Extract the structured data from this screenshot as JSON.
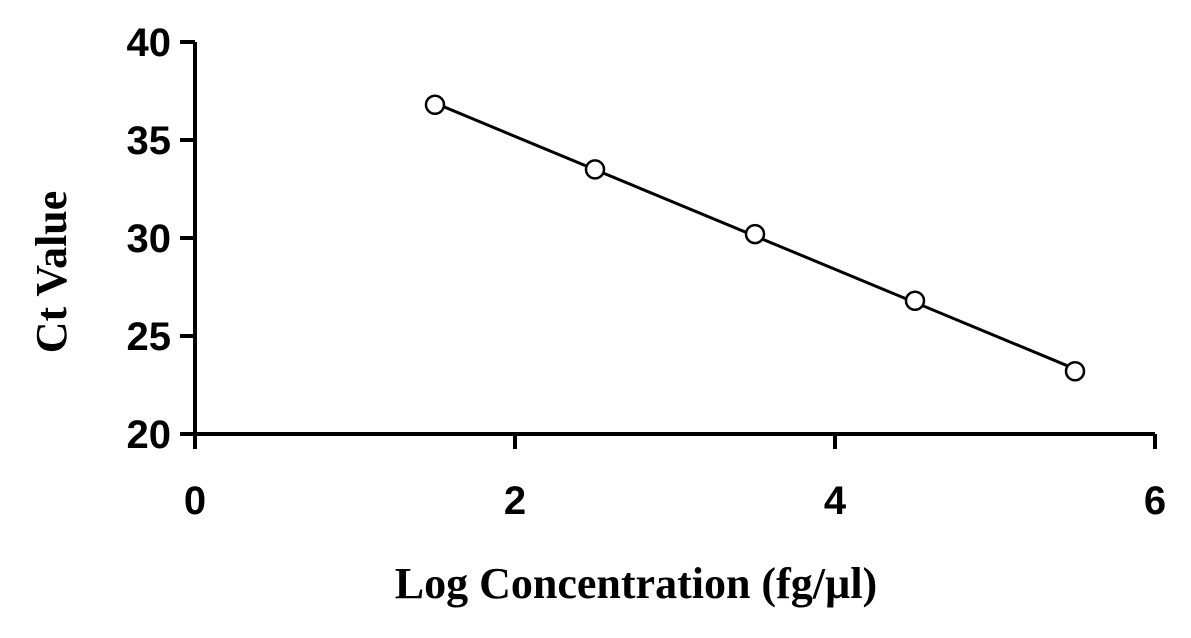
{
  "chart_data": {
    "type": "scatter",
    "xlabel": "Log Concentration (fg/µl)",
    "ylabel": "Ct Value",
    "xlim": [
      0,
      6
    ],
    "ylim": [
      20,
      40
    ],
    "x_ticks": [
      0,
      2,
      4,
      6
    ],
    "y_ticks": [
      20,
      25,
      30,
      35,
      40
    ],
    "grid": false,
    "series": [
      {
        "x": [
          1.5,
          2.5,
          3.5,
          4.5,
          5.5
        ],
        "y": [
          36.8,
          33.5,
          30.2,
          26.8,
          23.2
        ],
        "marker": "open-circle",
        "trendline": "linear",
        "color": "#000000"
      }
    ]
  }
}
